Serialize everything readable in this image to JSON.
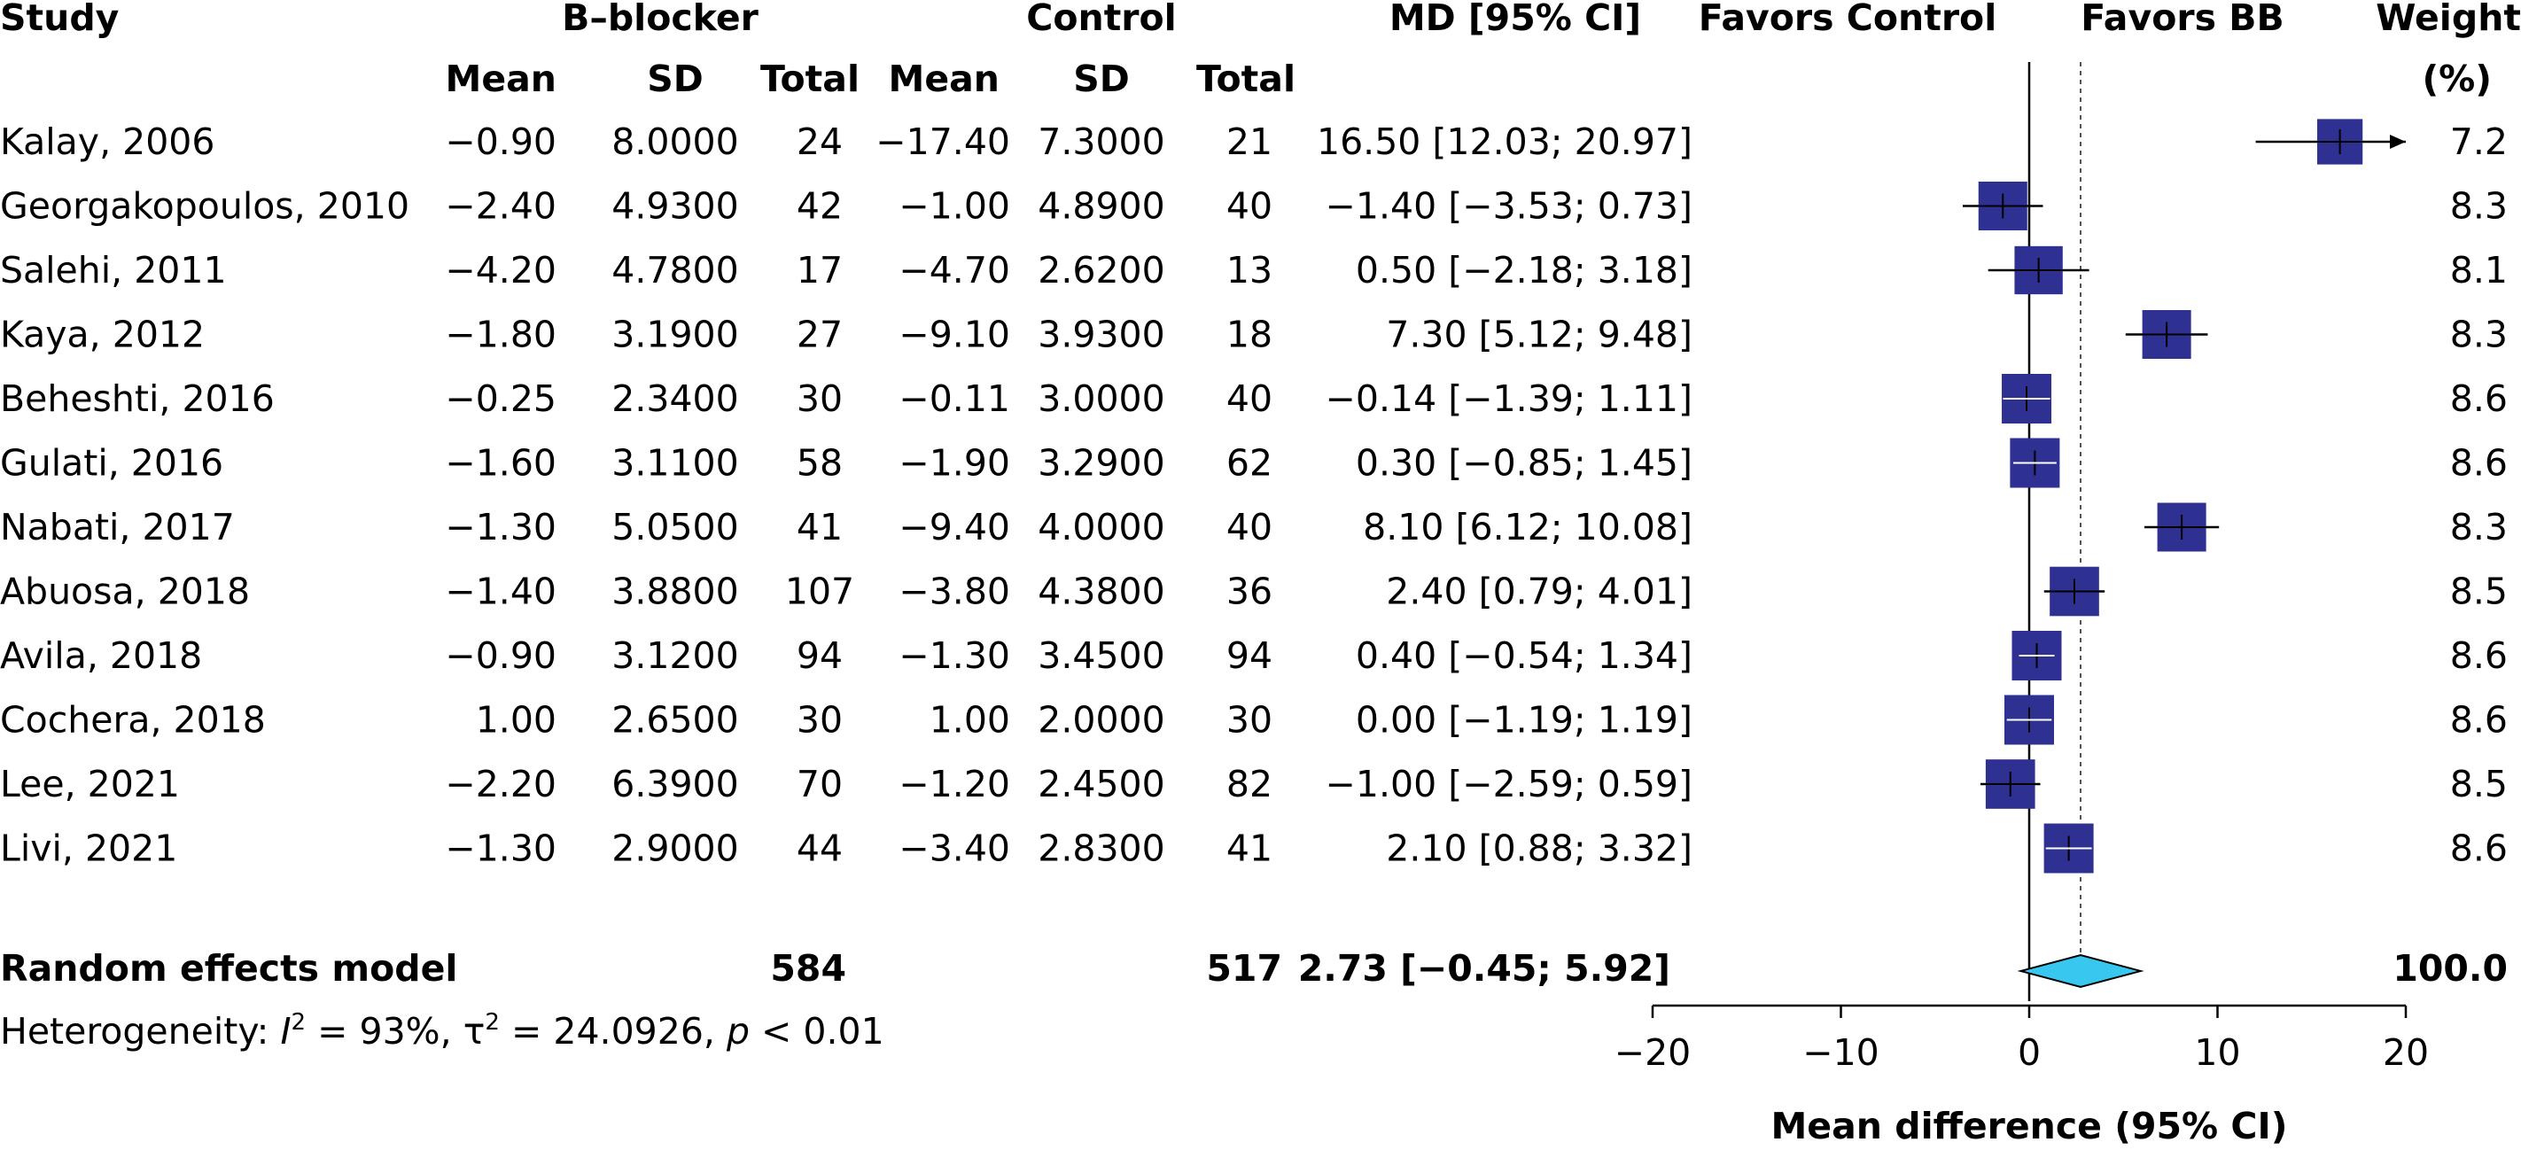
{
  "header": {
    "study": "Study",
    "group_bb": "B–blocker",
    "group_control": "Control",
    "md_ci": "MD [95% CI]",
    "favors_control": "Favors Control",
    "favors_bb": "Favors BB",
    "weight": "Weight",
    "weight_unit": "(%)",
    "mean": "Mean",
    "sd": "SD",
    "total": "Total"
  },
  "chart_data": {
    "type": "forest",
    "xlim": [
      -20,
      20
    ],
    "xticks": [
      "−20",
      "−10",
      "0",
      "10",
      "20"
    ],
    "xtick_values": [
      -20,
      -10,
      0,
      10,
      20
    ],
    "xlabel": "Mean difference (95% CI)",
    "summary_line": 2.73,
    "colors": {
      "box": "#2e3192",
      "diamond": "#38c8ef"
    },
    "studies": [
      {
        "study": "Kalay, 2006",
        "bb_mean": "−0.90",
        "bb_sd": "8.0000",
        "bb_total": "24",
        "ctl_mean": "−17.40",
        "ctl_sd": "7.3000",
        "ctl_total": "21",
        "md_text": "16.50 [12.03; 20.97]",
        "md": 16.5,
        "lo": 12.03,
        "hi": 20.97,
        "weight": "7.2",
        "w": 7.2
      },
      {
        "study": "Georgakopoulos, 2010",
        "bb_mean": "−2.40",
        "bb_sd": "4.9300",
        "bb_total": "42",
        "ctl_mean": "−1.00",
        "ctl_sd": "4.8900",
        "ctl_total": "40",
        "md_text": "−1.40 [−3.53; 0.73]",
        "md": -1.4,
        "lo": -3.53,
        "hi": 0.73,
        "weight": "8.3",
        "w": 8.3
      },
      {
        "study": "Salehi, 2011",
        "bb_mean": "−4.20",
        "bb_sd": "4.7800",
        "bb_total": "17",
        "ctl_mean": "−4.70",
        "ctl_sd": "2.6200",
        "ctl_total": "13",
        "md_text": "0.50 [−2.18; 3.18]",
        "md": 0.5,
        "lo": -2.18,
        "hi": 3.18,
        "weight": "8.1",
        "w": 8.1
      },
      {
        "study": "Kaya, 2012",
        "bb_mean": "−1.80",
        "bb_sd": "3.1900",
        "bb_total": "27",
        "ctl_mean": "−9.10",
        "ctl_sd": "3.9300",
        "ctl_total": "18",
        "md_text": "7.30 [5.12; 9.48]",
        "md": 7.3,
        "lo": 5.12,
        "hi": 9.48,
        "weight": "8.3",
        "w": 8.3
      },
      {
        "study": "Beheshti, 2016",
        "bb_mean": "−0.25",
        "bb_sd": "2.3400",
        "bb_total": "30",
        "ctl_mean": "−0.11",
        "ctl_sd": "3.0000",
        "ctl_total": "40",
        "md_text": "−0.14 [−1.39; 1.11]",
        "md": -0.14,
        "lo": -1.39,
        "hi": 1.11,
        "weight": "8.6",
        "w": 8.6
      },
      {
        "study": "Gulati, 2016",
        "bb_mean": "−1.60",
        "bb_sd": "3.1100",
        "bb_total": "58",
        "ctl_mean": "−1.90",
        "ctl_sd": "3.2900",
        "ctl_total": "62",
        "md_text": "0.30 [−0.85; 1.45]",
        "md": 0.3,
        "lo": -0.85,
        "hi": 1.45,
        "weight": "8.6",
        "w": 8.6
      },
      {
        "study": "Nabati, 2017",
        "bb_mean": "−1.30",
        "bb_sd": "5.0500",
        "bb_total": "41",
        "ctl_mean": "−9.40",
        "ctl_sd": "4.0000",
        "ctl_total": "40",
        "md_text": "8.10 [6.12; 10.08]",
        "md": 8.1,
        "lo": 6.12,
        "hi": 10.08,
        "weight": "8.3",
        "w": 8.3
      },
      {
        "study": "Abuosa, 2018",
        "bb_mean": "−1.40",
        "bb_sd": "3.8800",
        "bb_total": "107",
        "ctl_mean": "−3.80",
        "ctl_sd": "4.3800",
        "ctl_total": "36",
        "md_text": "2.40 [0.79; 4.01]",
        "md": 2.4,
        "lo": 0.79,
        "hi": 4.01,
        "weight": "8.5",
        "w": 8.5
      },
      {
        "study": "Avila, 2018",
        "bb_mean": "−0.90",
        "bb_sd": "3.1200",
        "bb_total": "94",
        "ctl_mean": "−1.30",
        "ctl_sd": "3.4500",
        "ctl_total": "94",
        "md_text": "0.40 [−0.54; 1.34]",
        "md": 0.4,
        "lo": -0.54,
        "hi": 1.34,
        "weight": "8.6",
        "w": 8.6
      },
      {
        "study": "Cochera, 2018",
        "bb_mean": "1.00",
        "bb_sd": "2.6500",
        "bb_total": "30",
        "ctl_mean": "1.00",
        "ctl_sd": "2.0000",
        "ctl_total": "30",
        "md_text": "0.00 [−1.19; 1.19]",
        "md": 0.0,
        "lo": -1.19,
        "hi": 1.19,
        "weight": "8.6",
        "w": 8.6
      },
      {
        "study": "Lee, 2021",
        "bb_mean": "−2.20",
        "bb_sd": "6.3900",
        "bb_total": "70",
        "ctl_mean": "−1.20",
        "ctl_sd": "2.4500",
        "ctl_total": "82",
        "md_text": "−1.00 [−2.59; 0.59]",
        "md": -1.0,
        "lo": -2.59,
        "hi": 0.59,
        "weight": "8.5",
        "w": 8.5
      },
      {
        "study": "Livi, 2021",
        "bb_mean": "−1.30",
        "bb_sd": "2.9000",
        "bb_total": "44",
        "ctl_mean": "−3.40",
        "ctl_sd": "2.8300",
        "ctl_total": "41",
        "md_text": "2.10 [0.88; 3.32]",
        "md": 2.1,
        "lo": 0.88,
        "hi": 3.32,
        "weight": "8.6",
        "w": 8.6
      }
    ],
    "pooled": {
      "label": "Random effects model",
      "bb_total": "584",
      "ctl_total": "517",
      "md_text": "2.73 [−0.45; 5.92]",
      "md": 2.73,
      "lo": -0.45,
      "hi": 5.92,
      "weight": "100.0"
    },
    "heterogeneity": {
      "prefix": "Heterogeneity: ",
      "i2_symbol": "I",
      "i2_value": " = 93%, ",
      "tau_symbol": "τ",
      "tau_value": " = 24.0926, ",
      "p_symbol": "p",
      "p_value": " < 0.01"
    }
  }
}
